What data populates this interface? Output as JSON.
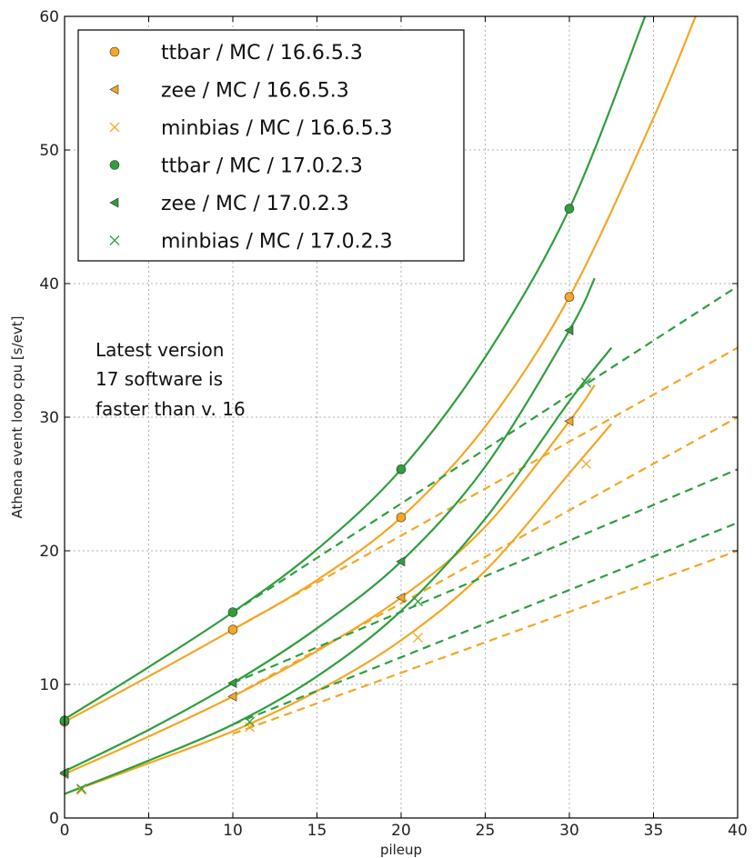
{
  "chart_data": {
    "type": "line",
    "xlabel": "pileup",
    "ylabel": "Athena event loop cpu [s/evt]",
    "xlim": [
      0,
      40
    ],
    "ylim": [
      0,
      60
    ],
    "x_ticks": [
      0,
      5,
      10,
      15,
      20,
      25,
      30,
      35,
      40
    ],
    "y_ticks": [
      0,
      10,
      20,
      30,
      40,
      50,
      60
    ],
    "grid": true,
    "legend_position": "top-left",
    "annotation": [
      "Latest version",
      "17 software is",
      "faster than v. 16"
    ],
    "colors": {
      "v16": "#f5a623",
      "v17": "#2e9e3e"
    },
    "series": [
      {
        "name": "ttbar / MC / 16.6.5.3",
        "marker": "circle",
        "color": "#f5a623",
        "points": {
          "x": [
            0,
            10,
            20,
            30
          ],
          "y": [
            7.2,
            14.1,
            22.5,
            39.0
          ]
        },
        "fit": {
          "x": [
            0,
            5,
            10,
            15,
            20,
            25,
            30,
            35,
            37.5
          ],
          "y": [
            7.2,
            10.6,
            14.1,
            17.8,
            22.5,
            29.3,
            39.0,
            52.4,
            60.0
          ]
        },
        "linear": {
          "x": [
            10,
            40
          ],
          "y": [
            14.1,
            35.2
          ]
        }
      },
      {
        "name": "zee / MC / 16.6.5.3",
        "marker": "triangle-left",
        "color": "#f5a623",
        "points": {
          "x": [
            0,
            10,
            20,
            30
          ],
          "y": [
            3.3,
            9.1,
            16.5,
            29.7
          ]
        },
        "fit": {
          "x": [
            0,
            5,
            10,
            15,
            20,
            25,
            30,
            31.5
          ],
          "y": [
            3.3,
            6.1,
            9.1,
            12.5,
            16.5,
            21.8,
            29.7,
            32.4
          ]
        },
        "linear": {
          "x": [
            10,
            40
          ],
          "y": [
            9.1,
            30.0
          ]
        }
      },
      {
        "name": "minbias / MC / 16.6.5.3",
        "marker": "x",
        "color": "#f5a623",
        "points": {
          "x": [
            1,
            11,
            21,
            31
          ],
          "y": [
            2.1,
            6.8,
            13.5,
            26.5
          ]
        },
        "fit": {
          "x": [
            0,
            5,
            10,
            15,
            20,
            25,
            30,
            32.5
          ],
          "y": [
            1.8,
            4.1,
            6.5,
            9.5,
            13.3,
            18.5,
            25.8,
            29.5
          ]
        },
        "linear": {
          "x": [
            10,
            40
          ],
          "y": [
            6.3,
            20.0
          ]
        }
      },
      {
        "name": "ttbar / MC / 17.0.2.3",
        "marker": "circle",
        "color": "#2e9e3e",
        "points": {
          "x": [
            0,
            10,
            20,
            30
          ],
          "y": [
            7.3,
            15.4,
            26.1,
            45.6
          ]
        },
        "fit": {
          "x": [
            0,
            5,
            10,
            15,
            20,
            25,
            30,
            34.5
          ],
          "y": [
            7.4,
            11.3,
            15.4,
            20.1,
            26.1,
            34.5,
            45.6,
            60.0
          ]
        },
        "linear": {
          "x": [
            10,
            40
          ],
          "y": [
            15.4,
            39.8
          ]
        }
      },
      {
        "name": "zee / MC / 17.0.2.3",
        "marker": "triangle-left",
        "color": "#2e9e3e",
        "points": {
          "x": [
            0,
            10,
            20,
            30
          ],
          "y": [
            3.4,
            10.1,
            19.2,
            36.5
          ]
        },
        "fit": {
          "x": [
            0,
            5,
            10,
            15,
            20,
            25,
            30,
            31.5
          ],
          "y": [
            3.5,
            6.6,
            10.1,
            14.2,
            19.2,
            26.3,
            36.5,
            40.4
          ]
        },
        "linear": {
          "x": [
            10,
            40
          ],
          "y": [
            10.1,
            26.1
          ]
        }
      },
      {
        "name": "minbias / MC / 17.0.2.3",
        "marker": "x",
        "color": "#2e9e3e",
        "points": {
          "x": [
            1,
            11,
            21,
            31
          ],
          "y": [
            2.2,
            7.2,
            16.2,
            32.6
          ]
        },
        "fit": {
          "x": [
            0,
            5,
            10,
            15,
            20,
            25,
            30,
            32.5
          ],
          "y": [
            1.8,
            4.3,
            7.0,
            10.6,
            15.5,
            22.4,
            31.2,
            35.2
          ]
        },
        "linear": {
          "x": [
            10,
            40
          ],
          "y": [
            7.0,
            22.1
          ]
        }
      }
    ]
  }
}
